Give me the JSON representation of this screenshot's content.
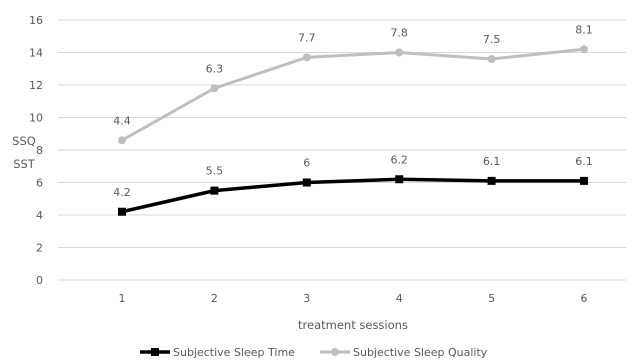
{
  "chart_data": {
    "type": "line",
    "x": [
      1,
      2,
      3,
      4,
      5,
      6
    ],
    "x_tick_labels": [
      "1",
      "2",
      "3",
      "4",
      "5",
      "6"
    ],
    "xlabel": "treatment sessions",
    "ylabel_lines": [
      "SSQ",
      "SST"
    ],
    "ylim": [
      0,
      16
    ],
    "y_ticks": [
      0,
      2,
      4,
      6,
      8,
      10,
      12,
      14,
      16
    ],
    "grid": "horizontal",
    "legend_position": "bottom",
    "series": [
      {
        "name": "Subjective Sleep Time",
        "plotted_values": [
          4.2,
          5.5,
          6,
          6.2,
          6.1,
          6.1
        ],
        "data_labels": [
          "4.2",
          "5.5",
          "6",
          "6.2",
          "6.1",
          "6.1"
        ],
        "color": "#000000",
        "marker": "square"
      },
      {
        "name": "Subjective Sleep Quality",
        "plotted_values": [
          8.6,
          11.8,
          13.7,
          14.0,
          13.6,
          14.2
        ],
        "data_labels": [
          "4.4",
          "6.3",
          "7.7",
          "7.8",
          "7.5",
          "8.1"
        ],
        "color": "#bfbfbf",
        "marker": "circle"
      }
    ]
  }
}
